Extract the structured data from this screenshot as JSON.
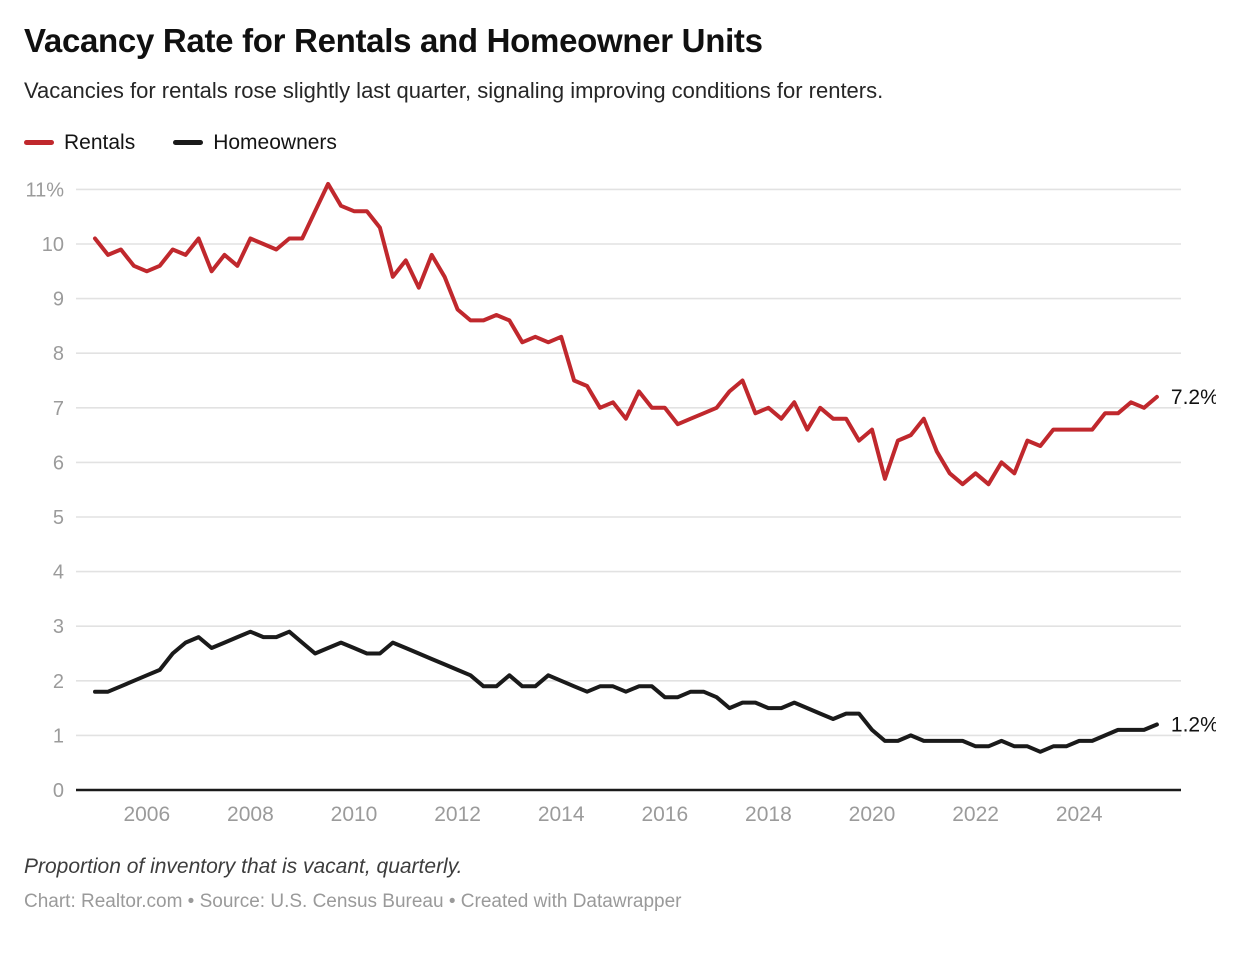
{
  "header": {
    "title": "Vacancy Rate for Rentals and Homeowner Units",
    "subtitle": "Vacancies for rentals rose slightly last quarter, signaling improving conditions for renters."
  },
  "footer": {
    "note": "Proportion of inventory that is vacant, quarterly.",
    "credit": "Chart: Realtor.com • Source: U.S. Census Bureau • Created with Datawrapper"
  },
  "colors": {
    "rentals_red": "#c0282d",
    "homeowners_black": "#1a1a1a",
    "grid": "#e2e2e2",
    "axis_label": "#9b9b9b",
    "baseline": "#1a1a1a",
    "end_label": "#111111"
  },
  "chart_data": {
    "type": "line",
    "frequency": "quarterly",
    "x_start": "2005 Q1",
    "x_end": "2025 Q3",
    "ylim": [
      0,
      11
    ],
    "y_ticks": [
      0,
      1,
      2,
      3,
      4,
      5,
      6,
      7,
      8,
      9,
      10,
      11
    ],
    "y_top_tick_label": "11%",
    "x_tick_years": [
      2006,
      2008,
      2010,
      2012,
      2014,
      2016,
      2018,
      2020,
      2022,
      2024
    ],
    "grid": true,
    "legend_position": "top-left",
    "series": [
      {
        "name": "Rentals",
        "color": "#c0282d",
        "end_label": "7.2%",
        "values": [
          10.1,
          9.8,
          9.9,
          9.6,
          9.5,
          9.6,
          9.9,
          9.8,
          10.1,
          9.5,
          9.8,
          9.6,
          10.1,
          10.0,
          9.9,
          10.1,
          10.1,
          10.6,
          11.1,
          10.7,
          10.6,
          10.6,
          10.3,
          9.4,
          9.7,
          9.2,
          9.8,
          9.4,
          8.8,
          8.6,
          8.6,
          8.7,
          8.6,
          8.2,
          8.3,
          8.2,
          8.3,
          7.5,
          7.4,
          7.0,
          7.1,
          6.8,
          7.3,
          7.0,
          7.0,
          6.7,
          6.8,
          6.9,
          7.0,
          7.3,
          7.5,
          6.9,
          7.0,
          6.8,
          7.1,
          6.6,
          7.0,
          6.8,
          6.8,
          6.4,
          6.6,
          5.7,
          6.4,
          6.5,
          6.8,
          6.2,
          5.8,
          5.6,
          5.8,
          5.6,
          6.0,
          5.8,
          6.4,
          6.3,
          6.6,
          6.6,
          6.6,
          6.6,
          6.9,
          6.9,
          7.1,
          7.0,
          7.2
        ]
      },
      {
        "name": "Homeowners",
        "color": "#1a1a1a",
        "end_label": "1.2%",
        "values": [
          1.8,
          1.8,
          1.9,
          2.0,
          2.1,
          2.2,
          2.5,
          2.7,
          2.8,
          2.6,
          2.7,
          2.8,
          2.9,
          2.8,
          2.8,
          2.9,
          2.7,
          2.5,
          2.6,
          2.7,
          2.6,
          2.5,
          2.5,
          2.7,
          2.6,
          2.5,
          2.4,
          2.3,
          2.2,
          2.1,
          1.9,
          1.9,
          2.1,
          1.9,
          1.9,
          2.1,
          2.0,
          1.9,
          1.8,
          1.9,
          1.9,
          1.8,
          1.9,
          1.9,
          1.7,
          1.7,
          1.8,
          1.8,
          1.7,
          1.5,
          1.6,
          1.6,
          1.5,
          1.5,
          1.6,
          1.5,
          1.4,
          1.3,
          1.4,
          1.4,
          1.1,
          0.9,
          0.9,
          1.0,
          0.9,
          0.9,
          0.9,
          0.9,
          0.8,
          0.8,
          0.9,
          0.8,
          0.8,
          0.7,
          0.8,
          0.8,
          0.9,
          0.9,
          1.0,
          1.1,
          1.1,
          1.1,
          1.2
        ]
      }
    ]
  }
}
